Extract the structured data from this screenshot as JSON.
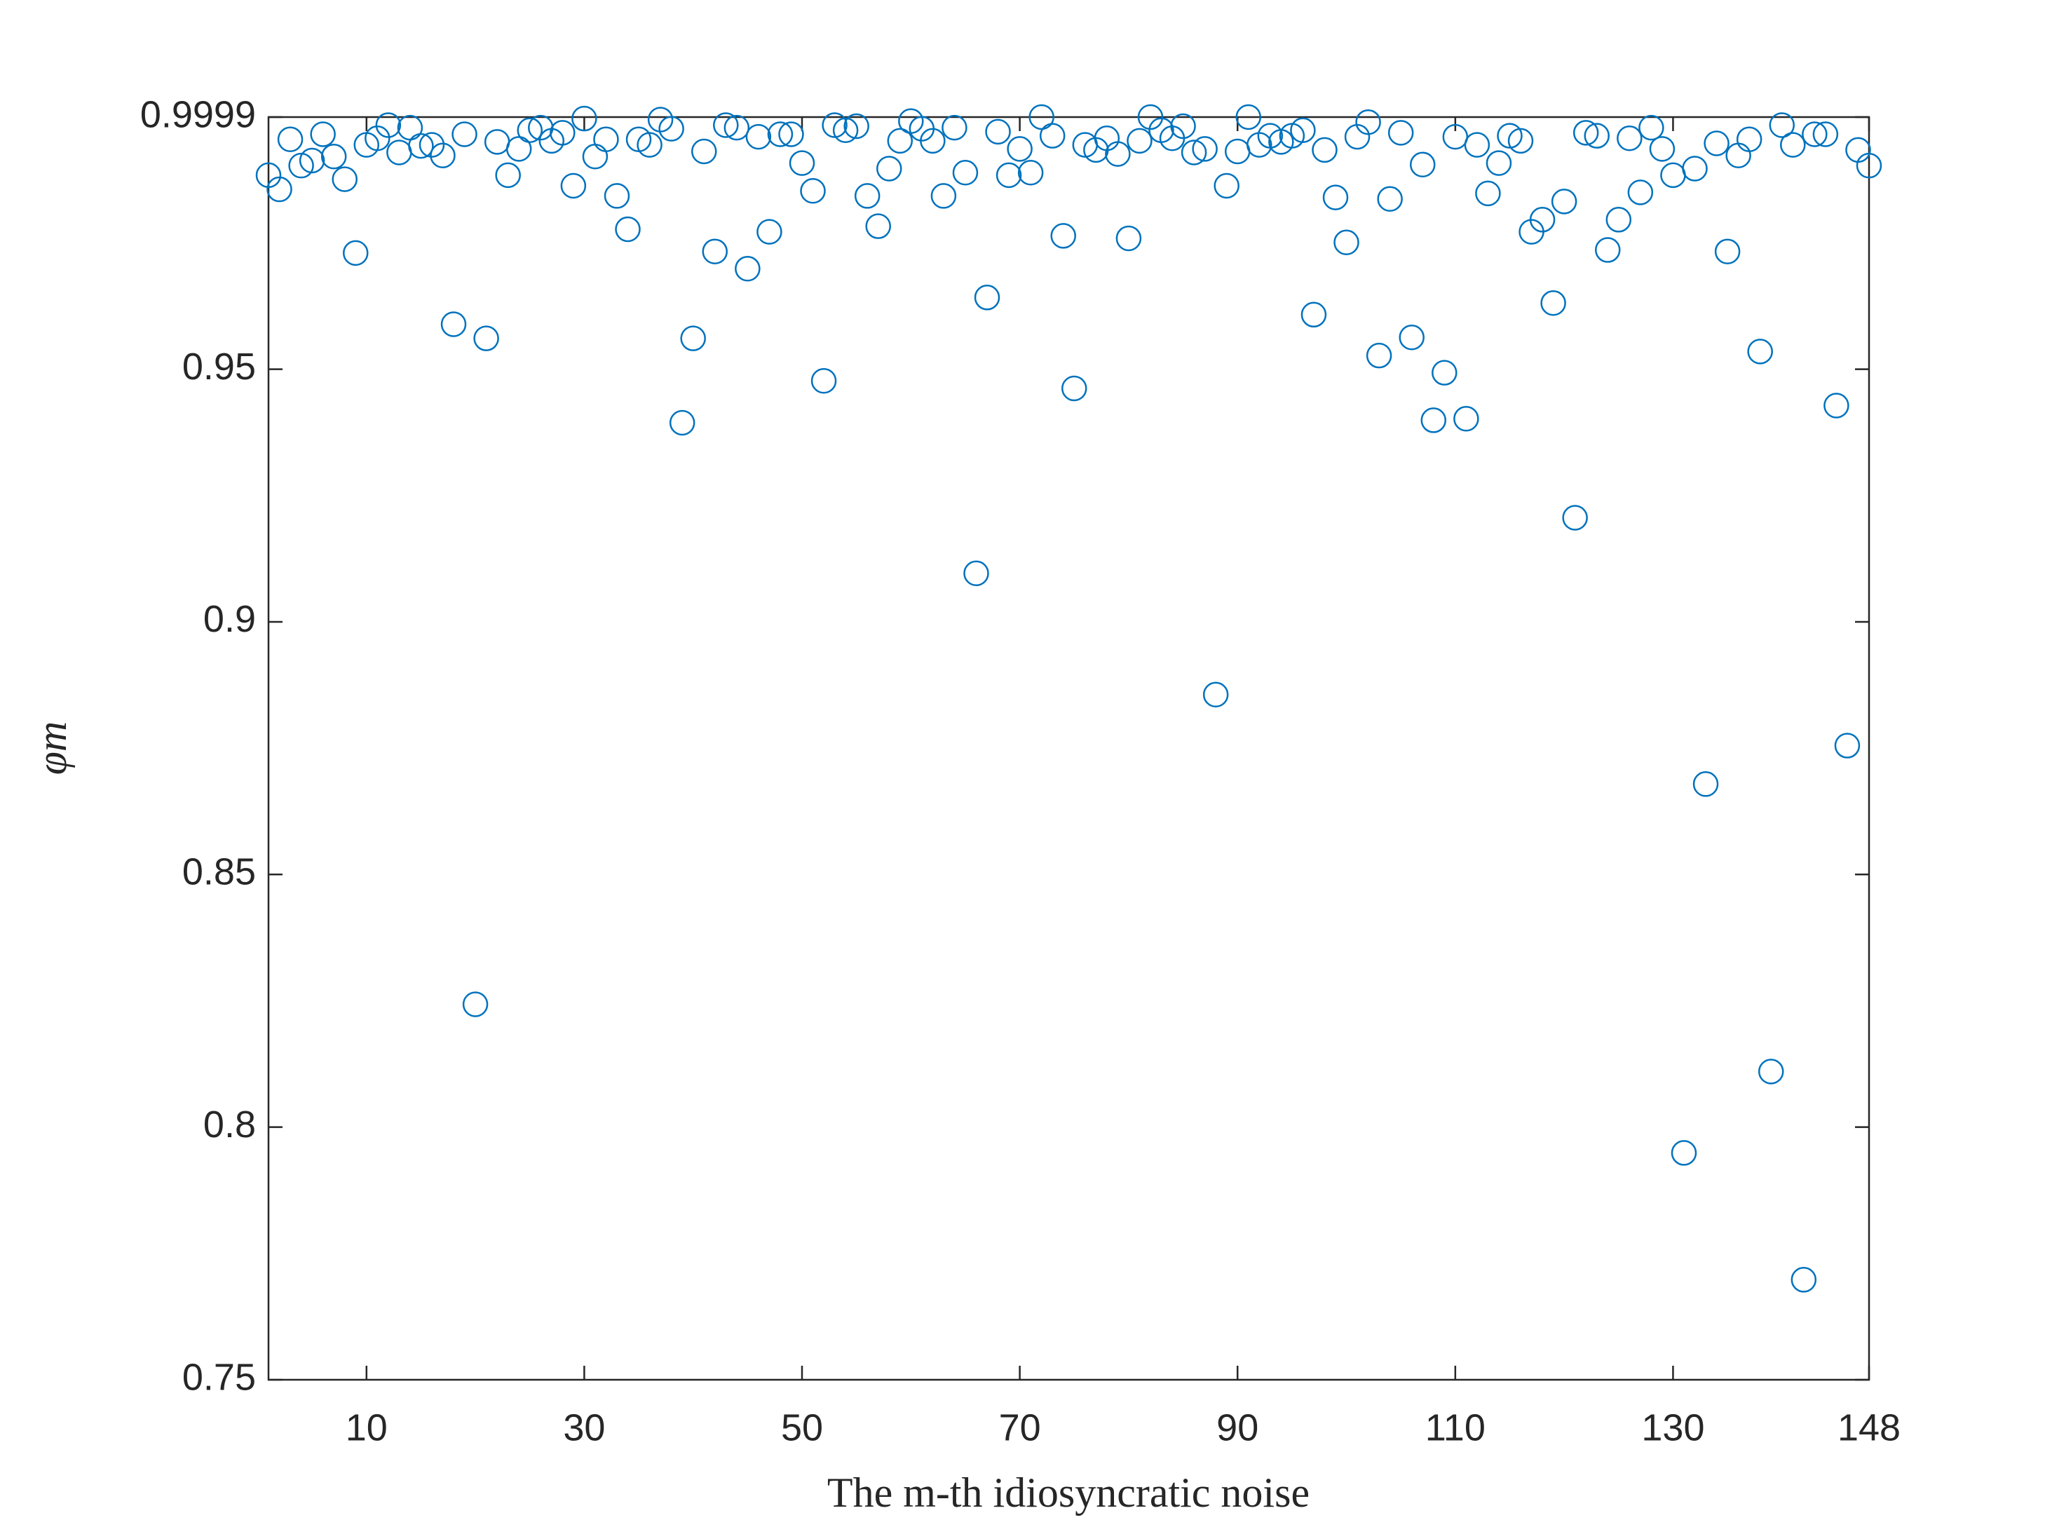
{
  "chart_data": {
    "type": "scatter",
    "xlabel": "The m-th idiosyncratic noise",
    "ylabel": "φm",
    "xlim": [
      1,
      148
    ],
    "ylim": [
      0.75,
      0.9999
    ],
    "xticks": [
      10,
      30,
      50,
      70,
      90,
      110,
      130,
      148
    ],
    "yticks": [
      0.75,
      0.8,
      0.85,
      0.9,
      0.95,
      0.9999
    ],
    "series": [
      {
        "color": "#0072bd",
        "x": [
          1,
          2,
          3,
          4,
          5,
          6,
          7,
          8,
          9,
          10,
          11,
          12,
          13,
          14,
          15,
          16,
          17,
          18,
          19,
          20,
          21,
          22,
          23,
          24,
          25,
          26,
          27,
          28,
          29,
          30,
          31,
          32,
          33,
          34,
          35,
          36,
          37,
          38,
          39,
          40,
          41,
          42,
          43,
          44,
          45,
          46,
          47,
          48,
          49,
          50,
          51,
          52,
          53,
          54,
          55,
          56,
          57,
          58,
          59,
          60,
          61,
          62,
          63,
          64,
          65,
          66,
          67,
          68,
          69,
          70,
          71,
          72,
          73,
          74,
          75,
          76,
          77,
          78,
          79,
          80,
          81,
          82,
          83,
          84,
          85,
          86,
          87,
          88,
          89,
          90,
          91,
          92,
          93,
          94,
          95,
          96,
          97,
          98,
          99,
          100,
          101,
          102,
          103,
          104,
          105,
          106,
          107,
          108,
          109,
          110,
          111,
          112,
          113,
          114,
          115,
          116,
          117,
          118,
          119,
          120,
          121,
          122,
          123,
          124,
          125,
          126,
          127,
          128,
          129,
          130,
          131,
          132,
          133,
          134,
          135,
          136,
          137,
          138,
          139,
          140,
          141,
          142,
          143,
          144,
          145,
          146,
          147,
          148
        ],
        "values": [
          0.9884,
          0.9856,
          0.9955,
          0.9903,
          0.9913,
          0.9965,
          0.9921,
          0.9876,
          0.973,
          0.9944,
          0.9957,
          0.9983,
          0.9929,
          0.9978,
          0.9942,
          0.9944,
          0.9923,
          0.9589,
          0.9965,
          0.8243,
          0.9561,
          0.995,
          0.9884,
          0.9936,
          0.9973,
          0.9978,
          0.9952,
          0.9968,
          0.9863,
          0.9996,
          0.9921,
          0.9955,
          0.9843,
          0.9777,
          0.9955,
          0.9944,
          0.9994,
          0.9976,
          0.9394,
          0.9561,
          0.9931,
          0.9733,
          0.9983,
          0.9978,
          0.9699,
          0.996,
          0.9772,
          0.9965,
          0.9965,
          0.9908,
          0.9853,
          0.9477,
          0.9983,
          0.9973,
          0.9981,
          0.9843,
          0.9783,
          0.9897,
          0.9952,
          0.9991,
          0.9976,
          0.9952,
          0.9843,
          0.9978,
          0.9889,
          0.9096,
          0.9642,
          0.997,
          0.9884,
          0.9936,
          0.9889,
          0.9999,
          0.9962,
          0.9764,
          0.9462,
          0.9944,
          0.9934,
          0.9957,
          0.9926,
          0.9759,
          0.9952,
          0.9999,
          0.9973,
          0.9957,
          0.9981,
          0.9929,
          0.9936,
          0.8856,
          0.9863,
          0.9931,
          0.9999,
          0.9944,
          0.9962,
          0.995,
          0.9962,
          0.9973,
          0.9608,
          0.9934,
          0.984,
          0.9751,
          0.996,
          0.9989,
          0.9527,
          0.9837,
          0.9968,
          0.9563,
          0.9905,
          0.9399,
          0.9493,
          0.996,
          0.9402,
          0.9944,
          0.9848,
          0.9908,
          0.9962,
          0.9952,
          0.9772,
          0.9796,
          0.9631,
          0.9832,
          0.9206,
          0.9968,
          0.9962,
          0.9736,
          0.9796,
          0.9957,
          0.985,
          0.9978,
          0.9936,
          0.9884,
          0.7949,
          0.9897,
          0.8679,
          0.9947,
          0.9733,
          0.9923,
          0.9955,
          0.9535,
          0.811,
          0.9983,
          0.9944,
          0.7698,
          0.9965,
          0.9965,
          0.9428,
          0.8755,
          0.9934,
          0.9903
        ]
      }
    ]
  }
}
